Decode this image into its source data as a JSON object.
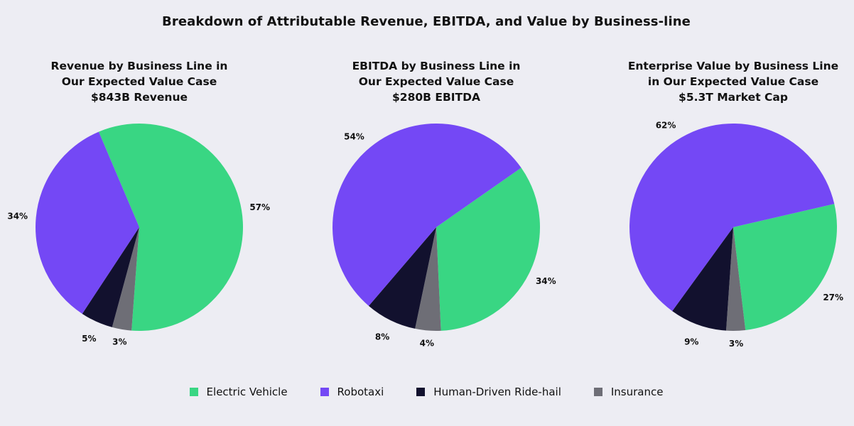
{
  "title": "Breakdown of Attributable Revenue, EBITDA, and Value by Business-line",
  "legend": [
    {
      "name": "Electric Vehicle",
      "color": "#39d683"
    },
    {
      "name": "Robotaxi",
      "color": "#7448f5"
    },
    {
      "name": "Human-Driven Ride-hail",
      "color": "#12112e"
    },
    {
      "name": "Insurance",
      "color": "#6e6e76"
    }
  ],
  "chart_data": [
    {
      "type": "pie",
      "title_lines": [
        "Revenue by Business Line in",
        "Our Expected Value Case",
        "$843B Revenue"
      ],
      "slices": [
        {
          "name": "Electric Vehicle",
          "value": 57,
          "label": "57%"
        },
        {
          "name": "Robotaxi",
          "value": 34,
          "label": "34%"
        },
        {
          "name": "Human-Driven Ride-hail",
          "value": 5,
          "label": "5%"
        },
        {
          "name": "Insurance",
          "value": 3,
          "label": "3%"
        }
      ]
    },
    {
      "type": "pie",
      "title_lines": [
        "EBITDA by Business Line in",
        "Our Expected Value Case",
        "$280B EBITDA"
      ],
      "slices": [
        {
          "name": "Electric Vehicle",
          "value": 34,
          "label": "34%"
        },
        {
          "name": "Robotaxi",
          "value": 54,
          "label": "54%"
        },
        {
          "name": "Human-Driven Ride-hail",
          "value": 8,
          "label": "8%"
        },
        {
          "name": "Insurance",
          "value": 4,
          "label": "4%"
        }
      ]
    },
    {
      "type": "pie",
      "title_lines": [
        "Enterprise Value by Business Line",
        "in Our Expected Value Case",
        "$5.3T Market Cap"
      ],
      "slices": [
        {
          "name": "Electric Vehicle",
          "value": 27,
          "label": "27%"
        },
        {
          "name": "Robotaxi",
          "value": 62,
          "label": "62%"
        },
        {
          "name": "Human-Driven Ride-hail",
          "value": 9,
          "label": "9%"
        },
        {
          "name": "Insurance",
          "value": 3,
          "label": "3%"
        }
      ]
    }
  ]
}
